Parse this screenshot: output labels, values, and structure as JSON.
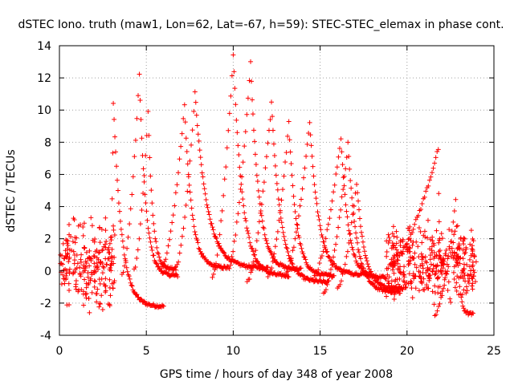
{
  "chart_data": {
    "type": "scatter",
    "title": "dSTEC Iono. truth (maw1, Lon=62, Lat=-67, h=59): STEC-STEC_elemax in phase cont.",
    "xlabel": "GPS time / hours of day 348 of year 2008",
    "ylabel": "dSTEC  / TECUs",
    "xlim": [
      0,
      25
    ],
    "ylim": [
      -4,
      14
    ],
    "xticks": [
      0,
      5,
      10,
      15,
      20,
      25
    ],
    "yticks": [
      -4,
      -2,
      0,
      2,
      4,
      6,
      8,
      10,
      12,
      14
    ],
    "xtick_labels": [
      "0",
      "5",
      "10",
      "15",
      "20",
      "25"
    ],
    "ytick_labels": [
      "-4",
      "-2",
      "0",
      "2",
      "4",
      "6",
      "8",
      "10",
      "12",
      "14"
    ],
    "grid": true,
    "legend": "none",
    "marker": "+",
    "color": "#ff0000",
    "arcs": [
      {
        "start": 2.9,
        "peak": 3.1,
        "end": 6.0,
        "peak_value": 10.5,
        "end_value": -2.2
      },
      {
        "start": 3.6,
        "peak": 4.6,
        "end": 6.8,
        "peak_value": 12.2,
        "end_value": -0.3
      },
      {
        "start": 4.3,
        "peak": 5.1,
        "end": 6.7,
        "peak_value": 9.9,
        "end_value": 0.1
      },
      {
        "start": 5.9,
        "peak": 7.2,
        "end": 9.7,
        "peak_value": 10.3,
        "end_value": 0.2
      },
      {
        "start": 6.7,
        "peak": 7.8,
        "end": 12.0,
        "peak_value": 11.1,
        "end_value": 0.2
      },
      {
        "start": 8.8,
        "peak": 10.0,
        "end": 13.2,
        "peak_value": 13.5,
        "end_value": -0.3
      },
      {
        "start": 9.7,
        "peak": 11.0,
        "end": 13.9,
        "peak_value": 12.9,
        "end_value": 0.1
      },
      {
        "start": 10.8,
        "peak": 12.2,
        "end": 15.5,
        "peak_value": 10.4,
        "end_value": -0.7
      },
      {
        "start": 12.0,
        "peak": 13.2,
        "end": 15.8,
        "peak_value": 9.2,
        "end_value": -0.3
      },
      {
        "start": 13.0,
        "peak": 14.4,
        "end": 17.6,
        "peak_value": 9.3,
        "end_value": -0.2
      },
      {
        "start": 14.6,
        "peak": 16.2,
        "end": 18.8,
        "peak_value": 8.3,
        "end_value": -0.4
      },
      {
        "start": 15.2,
        "peak": 16.6,
        "end": 19.6,
        "peak_value": 7.9,
        "end_value": -1.3
      },
      {
        "start": 16.0,
        "peak": 17.1,
        "end": 19.8,
        "peak_value": 5.5,
        "end_value": -1.1
      },
      {
        "start": 19.0,
        "peak": 21.8,
        "end": 22.1,
        "peak_value": 7.6,
        "end_value": 0.4
      },
      {
        "start": 21.6,
        "peak": 22.8,
        "end": 23.8,
        "peak_value": 4.4,
        "end_value": -2.7
      }
    ],
    "noisy_segments": [
      {
        "x_start": 0.0,
        "x_end": 3.2,
        "y_center": 0.5,
        "y_spread": 2.4
      },
      {
        "x_start": 18.8,
        "x_end": 24.0,
        "y_center": 0.3,
        "y_spread": 2.2
      }
    ]
  }
}
